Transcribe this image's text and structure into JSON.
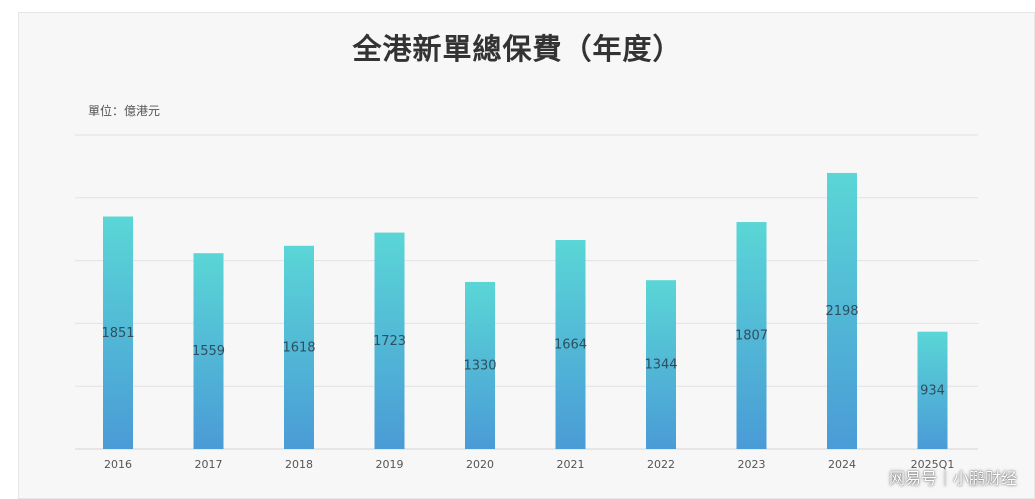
{
  "chart_data": {
    "type": "bar",
    "title": "全港新單總保費（年度）",
    "unit_label": "單位：億港元",
    "categories": [
      "2016",
      "2017",
      "2018",
      "2019",
      "2020",
      "2021",
      "2022",
      "2023",
      "2024",
      "2025Q1"
    ],
    "values": [
      1851,
      1559,
      1618,
      1723,
      1330,
      1664,
      1344,
      1807,
      2198,
      934
    ],
    "ylim": [
      0,
      2500
    ],
    "grid": true,
    "colors": {
      "bar_top": "#5ad6d6",
      "bar_bottom": "#4a9bd6",
      "grid": "#e2e2e2"
    }
  },
  "watermark": "网易号｜小鹏财经"
}
